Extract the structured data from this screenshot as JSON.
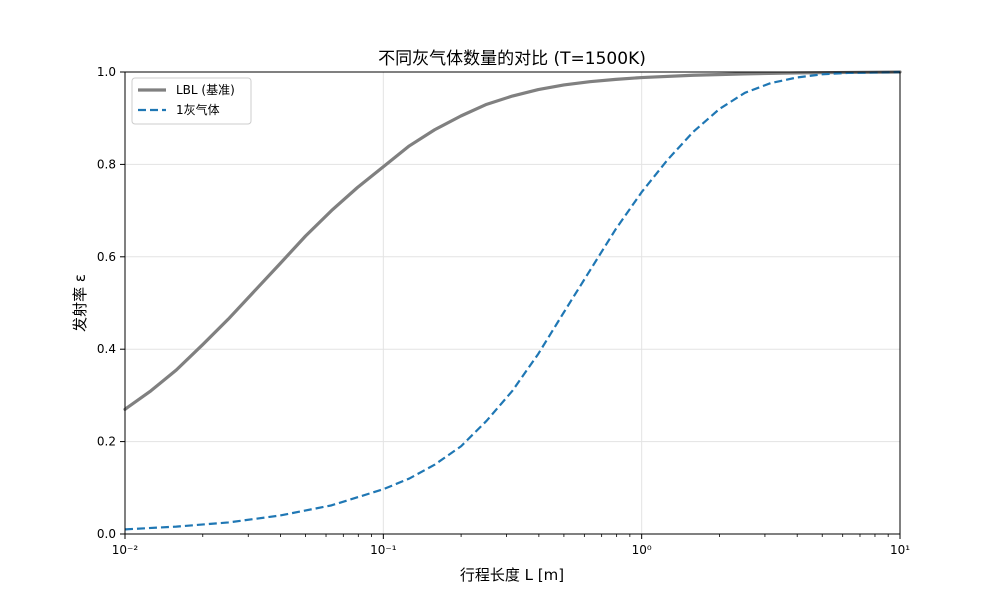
{
  "chart_data": {
    "type": "line",
    "title": "不同灰气体数量的对比 (T=1500K)",
    "xlabel": "行程长度 L [m]",
    "ylabel": "发射率 ε",
    "x_scale": "log",
    "xlim": [
      0.01,
      10
    ],
    "ylim": [
      0.0,
      1.0
    ],
    "grid": true,
    "legend_position": "top-left",
    "x_tick_labels": [
      "10⁻²",
      "10⁻¹",
      "10⁰",
      "10¹"
    ],
    "y_tick_labels": [
      "0.0",
      "0.2",
      "0.4",
      "0.6",
      "0.8",
      "1.0"
    ],
    "series": [
      {
        "name": "LBL (基准)",
        "color": "#808080",
        "style": "solid",
        "x": [
          0.01,
          0.0126,
          0.0158,
          0.02,
          0.0251,
          0.0316,
          0.0398,
          0.05,
          0.063,
          0.0794,
          0.1,
          0.126,
          0.158,
          0.2,
          0.251,
          0.316,
          0.398,
          0.5,
          0.63,
          0.794,
          1.0,
          1.58,
          2.51,
          3.98,
          6.3,
          10
        ],
        "y": [
          0.27,
          0.31,
          0.355,
          0.41,
          0.465,
          0.525,
          0.585,
          0.645,
          0.7,
          0.75,
          0.795,
          0.84,
          0.875,
          0.905,
          0.93,
          0.948,
          0.962,
          0.972,
          0.979,
          0.984,
          0.988,
          0.993,
          0.996,
          0.998,
          0.999,
          1.0
        ]
      },
      {
        "name": "1灰气体",
        "color": "#1f77b4",
        "style": "dashed",
        "x": [
          0.01,
          0.0158,
          0.0251,
          0.0398,
          0.063,
          0.1,
          0.126,
          0.158,
          0.2,
          0.251,
          0.316,
          0.398,
          0.5,
          0.63,
          0.794,
          1.0,
          1.26,
          1.58,
          2.0,
          2.51,
          3.16,
          3.98,
          5.0,
          6.3,
          7.94,
          10
        ],
        "y": [
          0.01,
          0.016,
          0.025,
          0.04,
          0.062,
          0.097,
          0.12,
          0.15,
          0.19,
          0.245,
          0.31,
          0.39,
          0.48,
          0.57,
          0.66,
          0.74,
          0.81,
          0.87,
          0.92,
          0.955,
          0.976,
          0.988,
          0.995,
          0.998,
          0.999,
          1.0
        ]
      }
    ]
  }
}
